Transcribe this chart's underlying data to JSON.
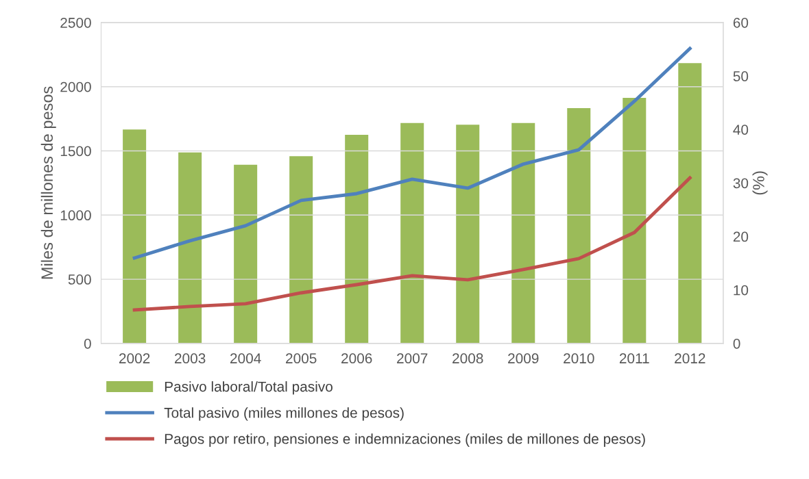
{
  "chart_data": {
    "type": "bar",
    "ylabel": "Miles de millones de pesos",
    "y2label": "(%)",
    "categories": [
      "2002",
      "2003",
      "2004",
      "2005",
      "2006",
      "2007",
      "2008",
      "2009",
      "2010",
      "2011",
      "2012"
    ],
    "series": [
      {
        "name": "Pasivo laboral/Total pasivo",
        "axis": "y2",
        "color": "#9bbb59",
        "values": [
          40,
          35.7,
          33.4,
          35,
          39,
          41.2,
          40.9,
          41.2,
          44,
          45.9,
          52.4
        ]
      },
      {
        "name": "Total pasivo (miles millones de pesos)",
        "type": "line",
        "color": "#4f81bd",
        "values": [
          666,
          800,
          917,
          1114,
          1167,
          1279,
          1210,
          1397,
          1509,
          1887,
          2297
        ]
      },
      {
        "name": "Pagos por retiro, pensiones e indemnizaciones (miles de millones de pesos)",
        "type": "line",
        "color": "#c0504d",
        "values": [
          261,
          288,
          309,
          394,
          458,
          528,
          496,
          576,
          661,
          864,
          1290
        ]
      }
    ],
    "ylim": [
      0,
      2500
    ],
    "yticks": [
      0,
      500,
      1000,
      1500,
      2000,
      2500
    ],
    "y2lim": [
      0,
      60
    ],
    "y2ticks": [
      0,
      10,
      20,
      30,
      40,
      50,
      60
    ],
    "grid": "y",
    "legend": "bottom",
    "marker": "none",
    "line_style": "solid"
  }
}
